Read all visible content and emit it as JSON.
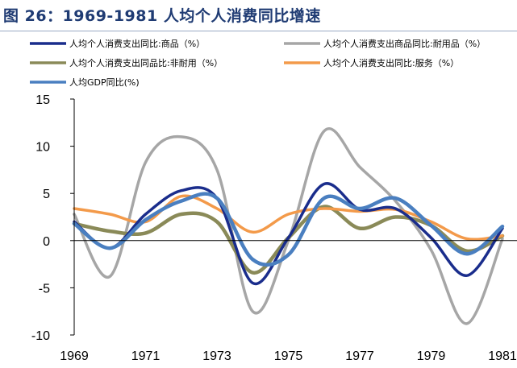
{
  "header": {
    "title": "图 26：1969-1981 人均个人消费同比增速"
  },
  "colors": {
    "title": "#1f3b73",
    "goods": "#1a2d8c",
    "durable": "#a6a6a6",
    "nondurable": "#8a8a58",
    "services": "#f39a4a",
    "gdp": "#4a7fc0"
  },
  "chart_data": {
    "type": "line",
    "title": "图 26：1969-1981 人均个人消费同比增速",
    "xlim": [
      1969,
      1981
    ],
    "ylim": [
      -10,
      15
    ],
    "xticks": [
      1969,
      1971,
      1973,
      1975,
      1977,
      1979,
      1981
    ],
    "yticks": [
      15,
      10,
      5,
      0,
      -5,
      -10
    ],
    "x_tick_labels": [
      "1969",
      "1971",
      "1973",
      "1975",
      "1977",
      "1979",
      "1981"
    ],
    "y_tick_labels": [
      "15",
      "10",
      "5",
      "0",
      "-5",
      "-10"
    ],
    "grid": false,
    "legend_position": "top",
    "x": [
      1969,
      1970,
      1971,
      1972,
      1973,
      1974,
      1975,
      1976,
      1977,
      1978,
      1979,
      1980,
      1981
    ],
    "series": [
      {
        "name": "人均个人消费支出同比:商品（%）",
        "color": "#1a2d8c",
        "values": [
          2.0,
          -0.8,
          2.8,
          5.3,
          4.5,
          -4.5,
          0.3,
          6.0,
          3.3,
          3.4,
          0.3,
          -3.7,
          1.3
        ]
      },
      {
        "name": "人均个人消费支出商品同比:耐用品（%）",
        "color": "#a6a6a6",
        "values": [
          2.8,
          -3.8,
          8.3,
          11.0,
          7.5,
          -7.5,
          0.0,
          11.6,
          7.8,
          4.2,
          -1.0,
          -8.8,
          0.2
        ]
      },
      {
        "name": "人均个人消费支出同品比:非耐用（%）",
        "color": "#8a8a58",
        "values": [
          1.8,
          1.0,
          0.8,
          2.8,
          2.0,
          -3.4,
          0.3,
          3.6,
          1.3,
          2.5,
          1.6,
          -1.1,
          0.5
        ]
      },
      {
        "name": "人均个人消费支出同比:服务（%）",
        "color": "#f39a4a",
        "values": [
          3.4,
          2.8,
          2.0,
          4.7,
          3.4,
          0.9,
          2.8,
          3.4,
          3.1,
          3.3,
          2.0,
          0.2,
          0.5
        ]
      },
      {
        "name": "人均GDP同比(%)",
        "color": "#4a7fc0",
        "values": [
          1.8,
          -0.8,
          2.2,
          4.2,
          4.5,
          -2.0,
          -1.5,
          4.5,
          3.4,
          4.5,
          1.6,
          -1.4,
          1.5
        ]
      }
    ]
  }
}
